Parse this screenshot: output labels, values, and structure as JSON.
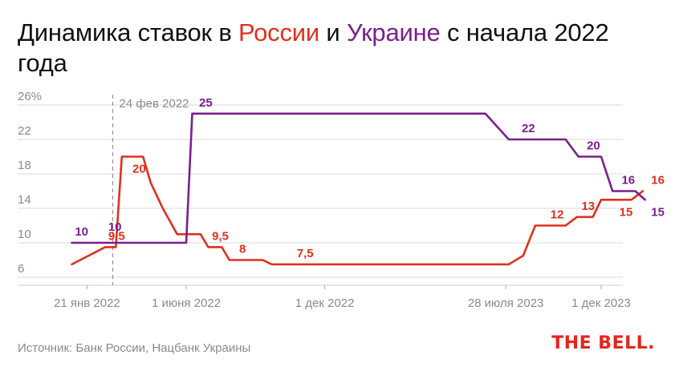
{
  "title": {
    "part1": "Динамика ставок в ",
    "russia": "России",
    "part2": " и ",
    "ukraine": "Украине",
    "part3": " с начала 2022 года"
  },
  "source": "Источник: Банк России, Нацбанк Украины",
  "logo": "THE BELL.",
  "colors": {
    "russia": "#e0301e",
    "ukraine": "#7a1f8e",
    "axis": "#8a8a8a",
    "grid": "#d9d9d9"
  },
  "chart_data": {
    "type": "line",
    "y_ticks": [
      "26%",
      "22",
      "18",
      "14",
      "10",
      "6"
    ],
    "x_ticks": [
      {
        "date": "2022-01-21",
        "label": "21 янв 2022"
      },
      {
        "date": "2022-06-01",
        "label": "1 июня 2022"
      },
      {
        "date": "2022-12-01",
        "label": "1 дек 2022"
      },
      {
        "date": "2023-07-28",
        "label": "28 июля 2023"
      },
      {
        "date": "2023-12-01",
        "label": "1 дек 2023"
      }
    ],
    "annotation": {
      "date": "2022-02-24",
      "label": "24 фев 2022"
    },
    "ylim": [
      6,
      26
    ],
    "grid": true,
    "series": [
      {
        "name": "Россия",
        "key": "russia",
        "points": [
          [
            "2022-01-01",
            7.5
          ],
          [
            "2022-02-14",
            9.5
          ],
          [
            "2022-02-28",
            9.5
          ],
          [
            "2022-03-08",
            20
          ],
          [
            "2022-04-05",
            20
          ],
          [
            "2022-04-15",
            17
          ],
          [
            "2022-05-01",
            14
          ],
          [
            "2022-05-20",
            11
          ],
          [
            "2022-06-20",
            11
          ],
          [
            "2022-06-30",
            9.5
          ],
          [
            "2022-07-18",
            9.5
          ],
          [
            "2022-07-28",
            8
          ],
          [
            "2022-09-10",
            8
          ],
          [
            "2022-09-22",
            7.5
          ],
          [
            "2023-07-20",
            7.5
          ],
          [
            "2023-08-01",
            7.5
          ],
          [
            "2023-08-20",
            8.5
          ],
          [
            "2023-09-05",
            12
          ],
          [
            "2023-10-15",
            12
          ],
          [
            "2023-10-30",
            13
          ],
          [
            "2023-11-20",
            13
          ],
          [
            "2023-12-01",
            15
          ],
          [
            "2024-01-10",
            15
          ],
          [
            "2024-01-25",
            16
          ]
        ],
        "labels": [
          {
            "date": "2022-02-18",
            "value": 9.5,
            "text": "9,5",
            "pos": "above"
          },
          {
            "date": "2022-03-22",
            "value": 20,
            "text": "20",
            "pos": "below"
          },
          {
            "date": "2022-07-05",
            "value": 9.5,
            "text": "9,5",
            "pos": "above"
          },
          {
            "date": "2022-08-10",
            "value": 8,
            "text": "8",
            "pos": "above"
          },
          {
            "date": "2022-10-25",
            "value": 7.5,
            "text": "7,5",
            "pos": "above"
          },
          {
            "date": "2023-09-25",
            "value": 12,
            "text": "12",
            "pos": "above"
          },
          {
            "date": "2023-11-05",
            "value": 13,
            "text": "13",
            "pos": "above"
          },
          {
            "date": "2023-12-25",
            "value": 15,
            "text": "15",
            "pos": "below"
          },
          {
            "date": "2024-02-05",
            "value": 16,
            "text": "16",
            "pos": "above"
          }
        ]
      },
      {
        "name": "Украина",
        "key": "ukraine",
        "points": [
          [
            "2022-01-01",
            10
          ],
          [
            "2022-06-01",
            10
          ],
          [
            "2022-06-09",
            25
          ],
          [
            "2023-07-01",
            25
          ],
          [
            "2023-08-01",
            22
          ],
          [
            "2023-10-15",
            22
          ],
          [
            "2023-11-01",
            20
          ],
          [
            "2023-12-01",
            20
          ],
          [
            "2023-12-16",
            16
          ],
          [
            "2024-01-15",
            16
          ],
          [
            "2024-01-28",
            15
          ]
        ],
        "labels": [
          {
            "date": "2022-01-05",
            "value": 10,
            "text": "10",
            "pos": "above"
          },
          {
            "date": "2022-02-18",
            "value": 10,
            "text": "10",
            "pos": "above",
            "dy": -6
          },
          {
            "date": "2022-06-18",
            "value": 25,
            "text": "25",
            "pos": "above"
          },
          {
            "date": "2023-08-18",
            "value": 22,
            "text": "22",
            "pos": "above"
          },
          {
            "date": "2023-11-12",
            "value": 20,
            "text": "20",
            "pos": "above"
          },
          {
            "date": "2023-12-28",
            "value": 16,
            "text": "16",
            "pos": "above"
          },
          {
            "date": "2024-02-05",
            "value": 15,
            "text": "15",
            "pos": "below"
          }
        ]
      }
    ]
  }
}
